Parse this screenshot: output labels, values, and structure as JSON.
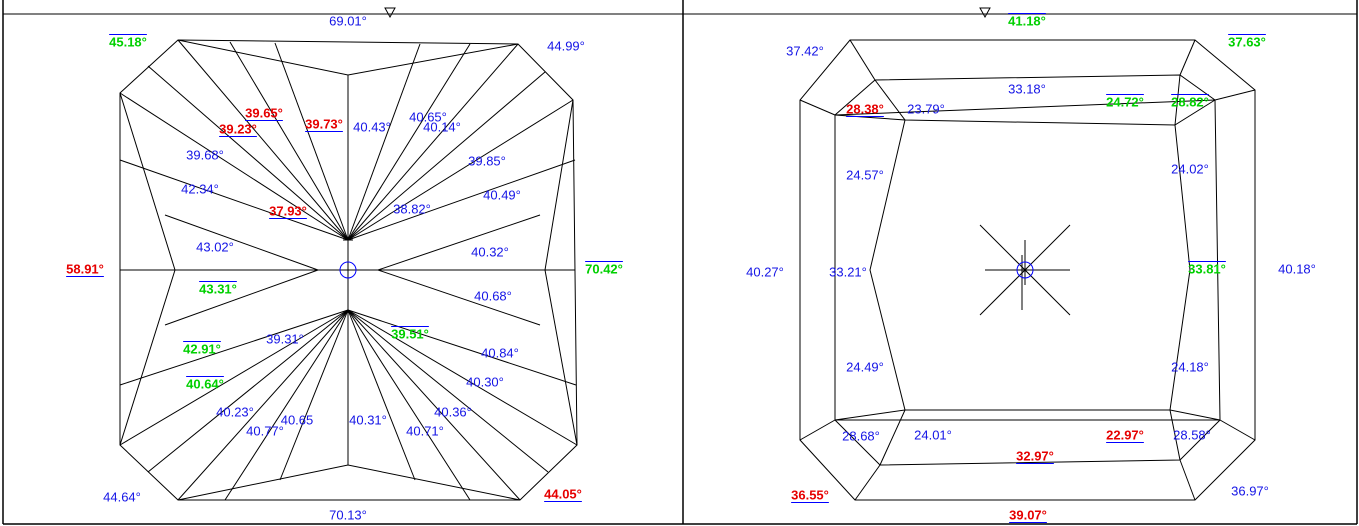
{
  "panels": [
    {
      "labels": [
        {
          "text": "69.01°",
          "color": "blue"
        },
        {
          "text": "45.18°",
          "color": "green"
        },
        {
          "text": "44.99°",
          "color": "blue"
        },
        {
          "text": "39.65°",
          "color": "red"
        },
        {
          "text": "39.73°",
          "color": "red"
        },
        {
          "text": "39.23°",
          "color": "red"
        },
        {
          "text": "40.43°",
          "color": "blue"
        },
        {
          "text": "40.65°",
          "color": "blue"
        },
        {
          "text": "40.14°",
          "color": "blue"
        },
        {
          "text": "39.68°",
          "color": "blue"
        },
        {
          "text": "39.85°",
          "color": "blue"
        },
        {
          "text": "42.34°",
          "color": "blue"
        },
        {
          "text": "37.93°",
          "color": "red"
        },
        {
          "text": "38.82°",
          "color": "blue"
        },
        {
          "text": "40.49°",
          "color": "blue"
        },
        {
          "text": "43.02°",
          "color": "blue"
        },
        {
          "text": "40.32°",
          "color": "blue"
        },
        {
          "text": "58.91°",
          "color": "red"
        },
        {
          "text": "70.42°",
          "color": "green"
        },
        {
          "text": "43.31°",
          "color": "green"
        },
        {
          "text": "40.68°",
          "color": "blue"
        },
        {
          "text": "39.31°",
          "color": "blue"
        },
        {
          "text": "39.51°",
          "color": "green"
        },
        {
          "text": "42.91°",
          "color": "green"
        },
        {
          "text": "40.84°",
          "color": "blue"
        },
        {
          "text": "40.64°",
          "color": "green"
        },
        {
          "text": "40.30°",
          "color": "blue"
        },
        {
          "text": "40.23°",
          "color": "blue"
        },
        {
          "text": "40.36°",
          "color": "blue"
        },
        {
          "text": "40.77°",
          "color": "blue"
        },
        {
          "text": "40.65",
          "color": "blue"
        },
        {
          "text": "40.31°",
          "color": "blue"
        },
        {
          "text": "40.71°",
          "color": "blue"
        },
        {
          "text": "44.64°",
          "color": "blue"
        },
        {
          "text": "70.13°",
          "color": "blue"
        },
        {
          "text": "44.05°",
          "color": "red"
        }
      ]
    },
    {
      "labels": [
        {
          "text": "41.18°",
          "color": "green"
        },
        {
          "text": "37.42°",
          "color": "blue"
        },
        {
          "text": "37.63°",
          "color": "green"
        },
        {
          "text": "33.18°",
          "color": "blue"
        },
        {
          "text": "28.38°",
          "color": "red"
        },
        {
          "text": "23.79°",
          "color": "blue"
        },
        {
          "text": "24.72°",
          "color": "green"
        },
        {
          "text": "28.82°",
          "color": "green"
        },
        {
          "text": "24.57°",
          "color": "blue"
        },
        {
          "text": "24.02°",
          "color": "blue"
        },
        {
          "text": "40.27°",
          "color": "blue"
        },
        {
          "text": "33.21°",
          "color": "blue"
        },
        {
          "text": "33.81°",
          "color": "green"
        },
        {
          "text": "40.18°",
          "color": "blue"
        },
        {
          "text": "24.49°",
          "color": "blue"
        },
        {
          "text": "24.18°",
          "color": "blue"
        },
        {
          "text": "28.68°",
          "color": "blue"
        },
        {
          "text": "24.01°",
          "color": "blue"
        },
        {
          "text": "22.97°",
          "color": "red"
        },
        {
          "text": "28.58°",
          "color": "blue"
        },
        {
          "text": "32.97°",
          "color": "red"
        },
        {
          "text": "36.55°",
          "color": "red"
        },
        {
          "text": "36.97°",
          "color": "blue"
        },
        {
          "text": "39.07°",
          "color": "red"
        }
      ]
    }
  ]
}
